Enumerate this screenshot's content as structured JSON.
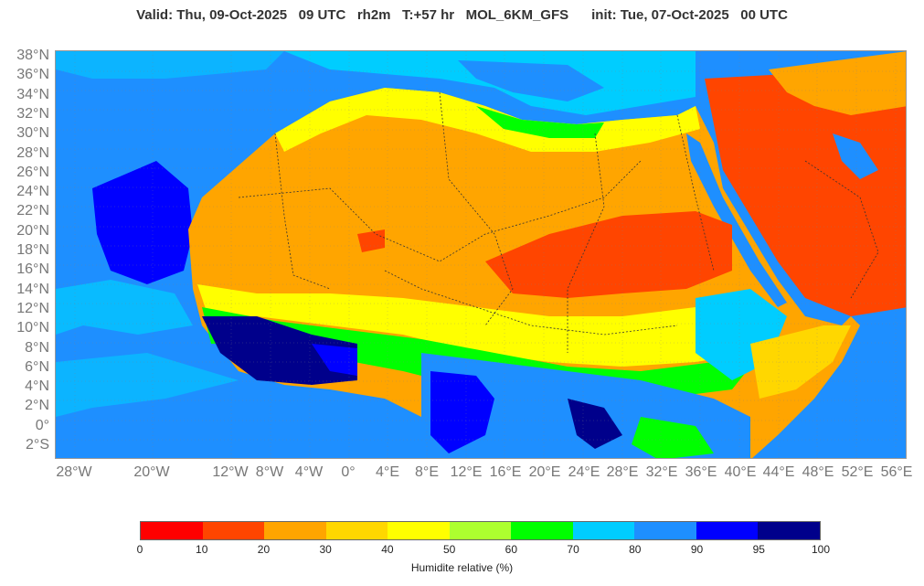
{
  "title": "Valid: Thu, 09-Oct-2025   09 UTC   rh2m   T:+57 hr   MOL_6KM_GFS      init: Tue, 07-Oct-2025   00 UTC",
  "map": {
    "lat_labels": [
      "38°N",
      "36°N",
      "34°N",
      "32°N",
      "30°N",
      "28°N",
      "26°N",
      "24°N",
      "22°N",
      "20°N",
      "18°N",
      "16°N",
      "14°N",
      "12°N",
      "10°N",
      "8°N",
      "6°N",
      "4°N",
      "2°N",
      "0°",
      "2°S"
    ],
    "lon_labels": [
      "28°W",
      "20°W",
      "12°W",
      "8°W",
      "4°W",
      "0°",
      "4°E",
      "8°E",
      "12°E",
      "16°E",
      "20°E",
      "24°E",
      "28°E",
      "32°E",
      "36°E",
      "40°E",
      "44°E",
      "48°E",
      "52°E",
      "56°E"
    ],
    "ocean_color": "#1e8fff"
  },
  "colorbar": {
    "label": "Humidite relative (%)",
    "ticks": [
      "0",
      "10",
      "20",
      "30",
      "40",
      "50",
      "60",
      "70",
      "80",
      "90",
      "95",
      "100"
    ],
    "colors": [
      "#ff0000",
      "#ff4500",
      "#ffa500",
      "#ffd700",
      "#ffff00",
      "#adff2f",
      "#00ff00",
      "#00cdff",
      "#1e8fff",
      "#0000ff",
      "#00008b"
    ]
  }
}
